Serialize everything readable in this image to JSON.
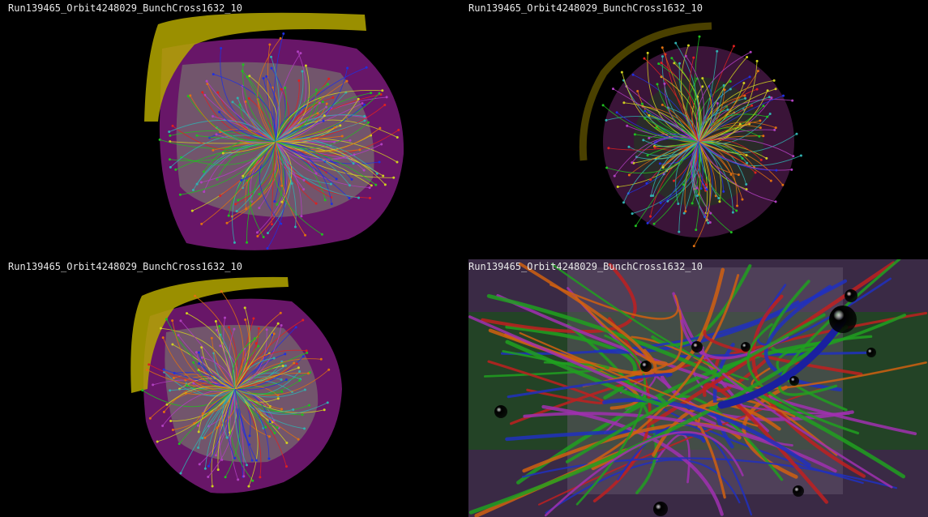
{
  "views": [
    {
      "label": "Run139465_Orbit4248029_BunchCross1632_10"
    },
    {
      "label": "Run139465_Orbit4248029_BunchCross1632_10"
    },
    {
      "label": "Run139465_Orbit4248029_BunchCross1632_10"
    },
    {
      "label": "Run139465_Orbit4248029_BunchCross1632_10"
    }
  ]
}
